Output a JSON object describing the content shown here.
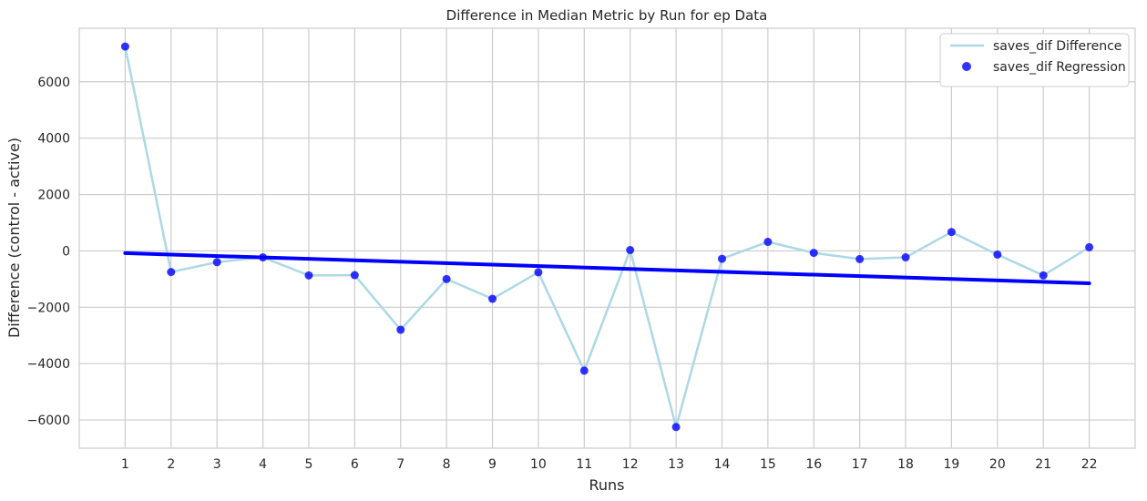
{
  "chart_data": {
    "type": "line",
    "title": "Difference in Median Metric by Run for ep Data",
    "xlabel": "Runs",
    "ylabel": "Difference (control - active)",
    "x": [
      1,
      2,
      3,
      4,
      5,
      6,
      7,
      8,
      9,
      10,
      11,
      12,
      13,
      14,
      15,
      16,
      17,
      18,
      19,
      20,
      21,
      22
    ],
    "xlim": [
      0,
      23
    ],
    "ylim": [
      -7000,
      7900
    ],
    "yticks": [
      -6000,
      -4000,
      -2000,
      0,
      2000,
      4000,
      6000
    ],
    "grid": true,
    "legend_position": "top-right",
    "series": [
      {
        "name": "saves_dif Difference",
        "kind": "line",
        "color": "#add8e6",
        "values": [
          7250,
          -750,
          -400,
          -230,
          -870,
          -860,
          -2800,
          -1000,
          -1700,
          -760,
          -4250,
          30,
          -6250,
          -280,
          320,
          -70,
          -290,
          -230,
          670,
          -130,
          -870,
          130
        ]
      },
      {
        "name": "saves_dif Regression",
        "kind": "scatter",
        "color": "#0000ff",
        "values": [
          7250,
          -750,
          -400,
          -230,
          -870,
          -860,
          -2800,
          -1000,
          -1700,
          -760,
          -4250,
          30,
          -6250,
          -280,
          320,
          -70,
          -290,
          -230,
          670,
          -130,
          -870,
          130
        ]
      },
      {
        "kind": "regression-line",
        "color": "#0000ff",
        "x": [
          1,
          22
        ],
        "values": [
          -80,
          -1150
        ]
      }
    ]
  }
}
